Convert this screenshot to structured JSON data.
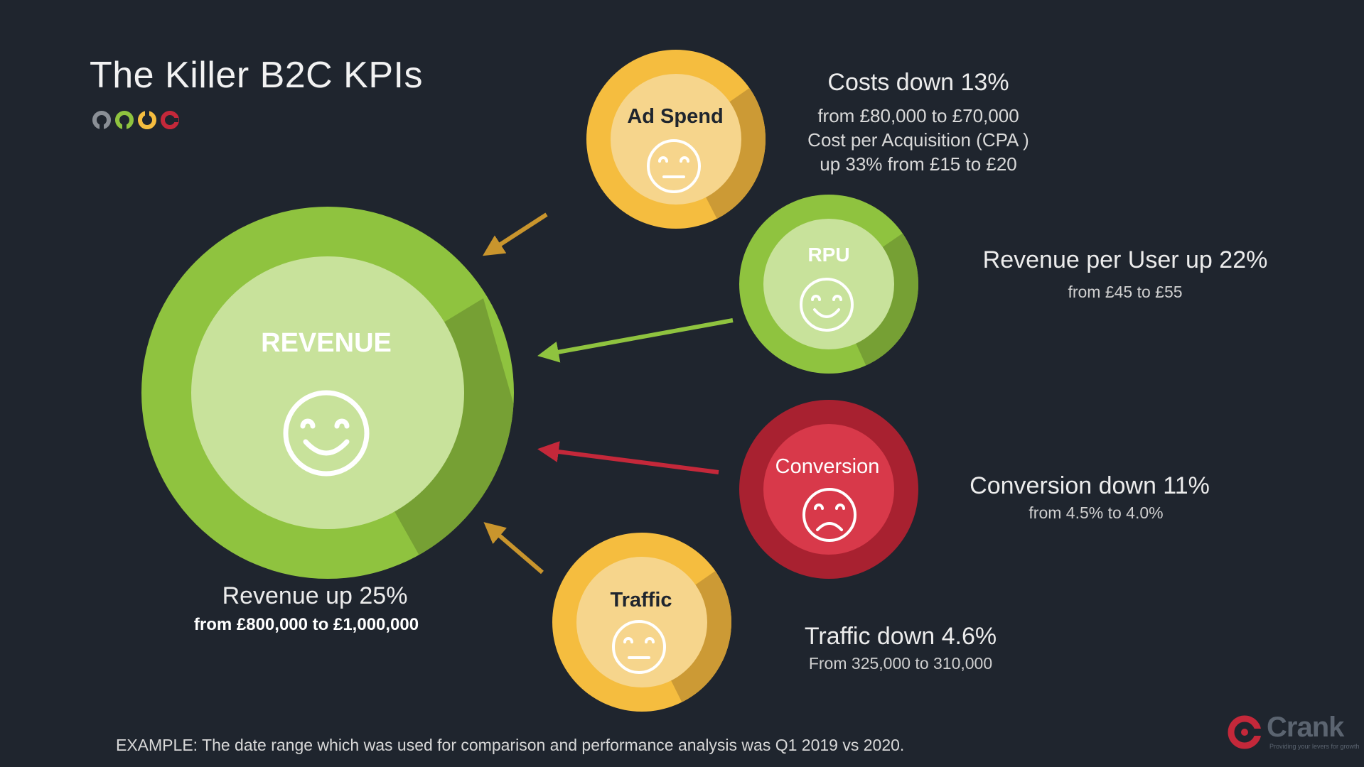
{
  "title": "The Killer B2C KPIs",
  "circles": {
    "revenue": {
      "label": "REVENUE",
      "mood": "happy"
    },
    "ad_spend": {
      "label": "Ad Spend",
      "mood": "neutral"
    },
    "rpu": {
      "label": "RPU",
      "mood": "happy"
    },
    "conversion": {
      "label": "Conversion",
      "mood": "sad"
    },
    "traffic": {
      "label": "Traffic",
      "mood": "neutral"
    }
  },
  "kpis": {
    "revenue": {
      "headline": "Revenue up 25%",
      "detail": "from £800,000 to £1,000,000"
    },
    "ad_spend": {
      "headline": "Costs down 13%",
      "lines": [
        "from £80,000 to £70,000",
        "Cost per Acquisition (CPA )",
        "up 33%  from £15 to £20"
      ]
    },
    "rpu": {
      "headline": "Revenue per User up 22%",
      "detail": "from £45 to £55"
    },
    "conversion": {
      "headline": "Conversion down 11%",
      "detail": "from 4.5% to 4.0%"
    },
    "traffic": {
      "headline": "Traffic down 4.6%",
      "detail": "From 325,000 to 310,000"
    }
  },
  "footer": "EXAMPLE: The date range which was used for comparison and performance analysis was Q1 2019 vs 2020.",
  "brand": {
    "name": "Crank",
    "tagline": "Providing your levers for growth"
  },
  "colors": {
    "background": "#1f252e",
    "green": "#8fc33f",
    "green_light": "#c8e29b",
    "amber": "#f5bd3f",
    "amber_light": "#f6d58c",
    "red": "#c4283a",
    "red_inner": "#d8394a",
    "dot_gray": "#8a8f96",
    "dot_green": "#8fc33f",
    "dot_amber": "#f5bd3f",
    "dot_red": "#c4283a"
  }
}
